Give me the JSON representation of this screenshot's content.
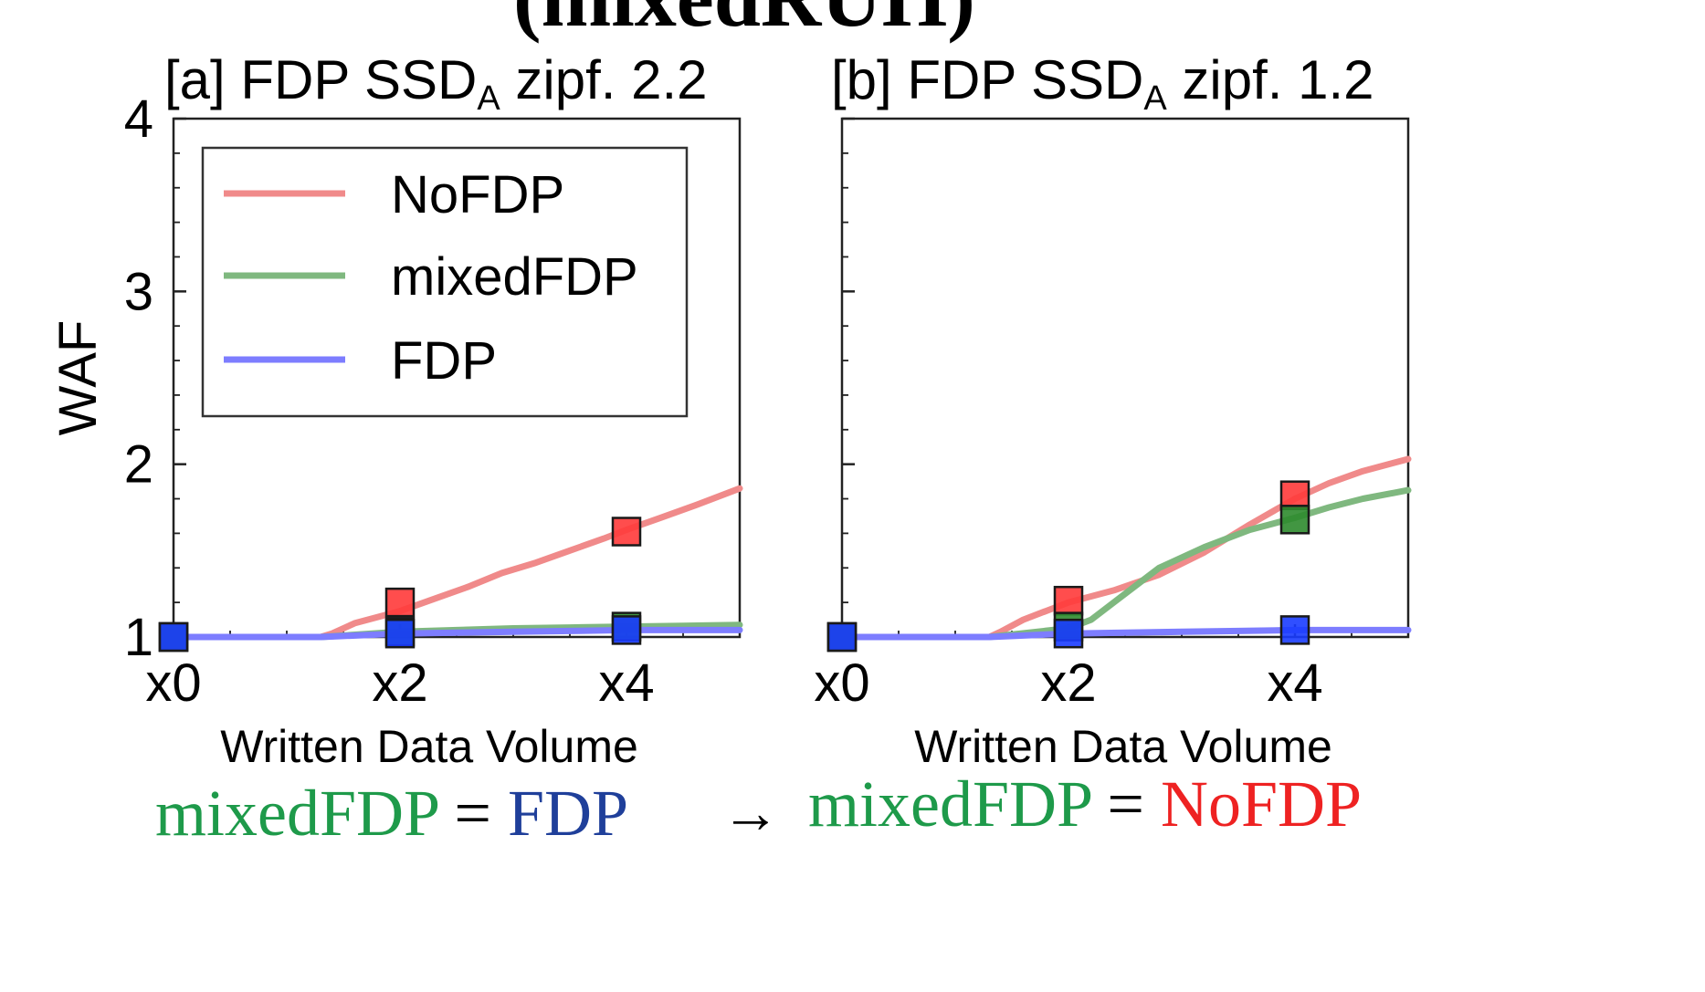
{
  "figure": {
    "title": "(mixedRUH)",
    "caption": {
      "left_a": "mixedFDP",
      "left_eq": "=",
      "left_b": "FDP",
      "arrow": "→",
      "right_a": "mixedFDP",
      "right_eq": "=",
      "right_b": "NoFDP"
    }
  },
  "colors": {
    "NoFDP_line": "#f08a8a",
    "mixedFDP_line": "#7fb87f",
    "FDP_line": "#7d7dff",
    "NoFDP_marker": "#ff3a3a",
    "mixedFDP_marker": "#2e8b2e",
    "FDP_marker": "#1a3cff",
    "caption_green": "#1e9a4a",
    "caption_blue": "#1f3f9a",
    "caption_red": "#ee2222"
  },
  "chart_data": [
    {
      "type": "line",
      "panel": "a",
      "title": "[a] FDP SSD",
      "title_sub": "A",
      "title_tail": " zipf. 2.2",
      "xlabel": "Written Data Volume",
      "ylabel": "WAF",
      "xlim": [
        0,
        5
      ],
      "ylim": [
        1,
        4
      ],
      "yticks": [
        1,
        2,
        3,
        4
      ],
      "xticks": [
        0,
        2,
        4
      ],
      "xtick_labels": [
        "x0",
        "x2",
        "x4"
      ],
      "legend": {
        "position": "upper-left",
        "entries": [
          "NoFDP",
          "mixedFDP",
          "FDP"
        ]
      },
      "series": [
        {
          "name": "NoFDP",
          "x": [
            0,
            1.3,
            1.4,
            1.6,
            2.0,
            2.3,
            2.6,
            2.9,
            3.2,
            3.5,
            3.8,
            4.0,
            4.3,
            4.6,
            5.0
          ],
          "y": [
            1.0,
            1.0,
            1.02,
            1.08,
            1.15,
            1.22,
            1.29,
            1.37,
            1.43,
            1.5,
            1.57,
            1.62,
            1.69,
            1.76,
            1.86
          ]
        },
        {
          "name": "mixedFDP",
          "x": [
            0,
            1.3,
            2.0,
            2.5,
            3.0,
            3.5,
            4.0,
            4.5,
            5.0
          ],
          "y": [
            1.0,
            1.0,
            1.03,
            1.04,
            1.05,
            1.055,
            1.06,
            1.065,
            1.07
          ]
        },
        {
          "name": "FDP",
          "x": [
            0,
            1.3,
            2.0,
            2.5,
            3.0,
            3.5,
            4.0,
            4.5,
            5.0
          ],
          "y": [
            1.0,
            1.0,
            1.02,
            1.025,
            1.03,
            1.035,
            1.04,
            1.04,
            1.04
          ]
        }
      ],
      "markers": [
        {
          "series": "NoFDP",
          "x": [
            0,
            2,
            4
          ],
          "y": [
            1.0,
            1.2,
            1.61
          ]
        },
        {
          "series": "mixedFDP",
          "x": [
            0,
            2,
            4
          ],
          "y": [
            1.0,
            1.03,
            1.06
          ]
        },
        {
          "series": "FDP",
          "x": [
            0,
            2,
            4
          ],
          "y": [
            1.0,
            1.02,
            1.04
          ]
        }
      ]
    },
    {
      "type": "line",
      "panel": "b",
      "title": "[b] FDP SSD",
      "title_sub": "A",
      "title_tail": " zipf. 1.2",
      "xlabel": "Written Data Volume",
      "ylabel": "",
      "xlim": [
        0,
        5
      ],
      "ylim": [
        1,
        4
      ],
      "yticks": [
        1,
        2,
        3,
        4
      ],
      "xticks": [
        0,
        2,
        4
      ],
      "xtick_labels": [
        "x0",
        "x2",
        "x4"
      ],
      "series": [
        {
          "name": "NoFDP",
          "x": [
            0,
            1.3,
            1.4,
            1.6,
            2.0,
            2.4,
            2.8,
            3.2,
            3.6,
            4.0,
            4.3,
            4.6,
            5.0
          ],
          "y": [
            1.0,
            1.0,
            1.03,
            1.1,
            1.2,
            1.27,
            1.36,
            1.49,
            1.65,
            1.8,
            1.89,
            1.96,
            2.03
          ]
        },
        {
          "name": "mixedFDP",
          "x": [
            0,
            1.3,
            2.0,
            2.2,
            2.4,
            2.6,
            2.8,
            3.2,
            3.6,
            4.0,
            4.3,
            4.6,
            5.0
          ],
          "y": [
            1.0,
            1.0,
            1.05,
            1.1,
            1.2,
            1.3,
            1.4,
            1.52,
            1.62,
            1.69,
            1.75,
            1.8,
            1.85
          ]
        },
        {
          "name": "FDP",
          "x": [
            0,
            1.3,
            2.0,
            2.5,
            3.0,
            3.5,
            4.0,
            4.5,
            5.0
          ],
          "y": [
            1.0,
            1.0,
            1.02,
            1.025,
            1.03,
            1.035,
            1.04,
            1.04,
            1.04
          ]
        }
      ],
      "markers": [
        {
          "series": "NoFDP",
          "x": [
            0,
            2,
            4
          ],
          "y": [
            1.0,
            1.21,
            1.82
          ]
        },
        {
          "series": "mixedFDP",
          "x": [
            0,
            2,
            4
          ],
          "y": [
            1.0,
            1.06,
            1.68
          ]
        },
        {
          "series": "FDP",
          "x": [
            0,
            2,
            4
          ],
          "y": [
            1.0,
            1.02,
            1.04
          ]
        }
      ]
    }
  ]
}
